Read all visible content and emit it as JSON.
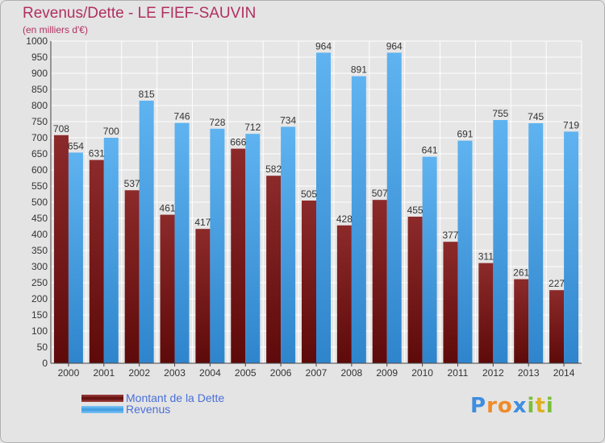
{
  "header": {
    "title": "Revenus/Dette - LE FIEF-SAUVIN",
    "subtitle": "(en milliers d'€)"
  },
  "chart_data": {
    "type": "bar",
    "title": "Revenus/Dette - LE FIEF-SAUVIN",
    "subtitle": "(en milliers d'€)",
    "xlabel": "",
    "ylabel": "",
    "ylim": [
      0,
      1000
    ],
    "ytick_step": 50,
    "grid": true,
    "legend_position": "bottom-left",
    "categories": [
      "2000",
      "2001",
      "2002",
      "2003",
      "2004",
      "2005",
      "2006",
      "2007",
      "2008",
      "2009",
      "2010",
      "2011",
      "2012",
      "2013",
      "2014"
    ],
    "series": [
      {
        "name": "Montant de la Dette",
        "color": "#7a1a1a",
        "values": [
          708,
          631,
          537,
          461,
          417,
          666,
          582,
          505,
          428,
          507,
          455,
          377,
          311,
          261,
          227
        ],
        "labels": [
          "708",
          "631",
          "537",
          "461",
          "417",
          "666",
          "582",
          "505",
          "428",
          "507",
          "455",
          "377",
          "311",
          "261",
          "227"
        ]
      },
      {
        "name": "Revenus",
        "color": "#3b9ae1",
        "values": [
          654,
          700,
          815,
          746,
          728,
          712,
          734,
          964,
          891,
          964,
          641,
          691,
          755,
          745,
          719
        ],
        "labels": [
          "654",
          "700",
          "815",
          "746",
          "728",
          "712",
          "734",
          "964",
          "891",
          "964",
          "641",
          "691",
          "755",
          "745",
          "719"
        ]
      }
    ]
  },
  "legend": {
    "debt_label": "Montant de la Dette",
    "revenue_label": "Revenus"
  },
  "logo": {
    "letters": [
      "P",
      "r",
      "o",
      "x",
      "i",
      "t",
      "i"
    ],
    "colors": [
      "#3e8ee0",
      "#f08a2a",
      "#f08a2a",
      "#3e8ee0",
      "#7bbf3a",
      "#e0b020",
      "#7bbf3a"
    ]
  }
}
